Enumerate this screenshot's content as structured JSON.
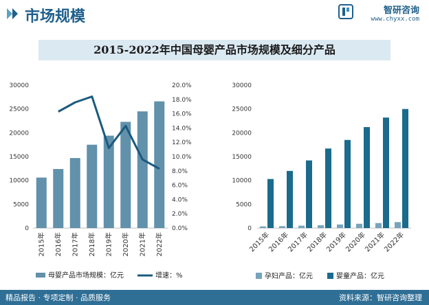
{
  "header": {
    "section_title": "市场规模",
    "brand_name": "智研咨询",
    "brand_url": "www.chyxx.com"
  },
  "chart_title": "2015-2022年中国母婴产品市场规模及细分产品",
  "footer": {
    "left_text": "精品报告 · 专项定制 · 品质服务",
    "source_text": "资料来源：智研咨询整理"
  },
  "colors": {
    "market_bar": "#6191ab",
    "growth_line": "#1a5a7e",
    "maternal_bar": "#77a3bb",
    "infant_bar": "#1a6b8c",
    "footer_bg": "#2f6e95"
  },
  "chart_data": [
    {
      "type": "bar",
      "categories": [
        "2015年",
        "2016年",
        "2017年",
        "2018年",
        "2019年",
        "2020年",
        "2021年",
        "2022年"
      ],
      "series": [
        {
          "name": "母婴产品市场规模：亿元",
          "type": "bar",
          "axis": "left",
          "values": [
            10600,
            12400,
            14700,
            17500,
            19400,
            22300,
            24500,
            26600
          ]
        },
        {
          "name": "增速：%",
          "type": "line",
          "axis": "right",
          "values": [
            null,
            16.3,
            17.6,
            18.4,
            11.2,
            14.3,
            9.6,
            8.3
          ]
        }
      ],
      "y_left": {
        "ylim": [
          0,
          30000
        ],
        "ticks": [
          "0",
          "5000",
          "10000",
          "15000",
          "20000",
          "25000",
          "30000"
        ]
      },
      "y_right": {
        "ylim": [
          0,
          20
        ],
        "ticks": [
          "0.0%",
          "2.0%",
          "4.0%",
          "6.0%",
          "8.0%",
          "10.0%",
          "12.0%",
          "14.0%",
          "16.0%",
          "18.0%",
          "20.0%"
        ]
      },
      "legend": [
        "母婴产品市场规模：亿元",
        "增速：%"
      ]
    },
    {
      "type": "bar",
      "categories": [
        "2015年",
        "2016年",
        "2017年",
        "2018年",
        "2019年",
        "2020年",
        "2021年",
        "2022年"
      ],
      "series": [
        {
          "name": "孕妇产品：亿元",
          "values": [
            350,
            400,
            500,
            600,
            750,
            900,
            1050,
            1250
          ]
        },
        {
          "name": "婴童产品：亿元",
          "values": [
            10300,
            12000,
            14200,
            16700,
            18500,
            21200,
            23200,
            25000
          ]
        }
      ],
      "y": {
        "ylim": [
          0,
          30000
        ],
        "ticks": [
          "0",
          "5000",
          "10000",
          "15000",
          "20000",
          "25000",
          "30000"
        ]
      },
      "legend": [
        "孕妇产品：亿元",
        "婴童产品：亿元"
      ]
    }
  ]
}
